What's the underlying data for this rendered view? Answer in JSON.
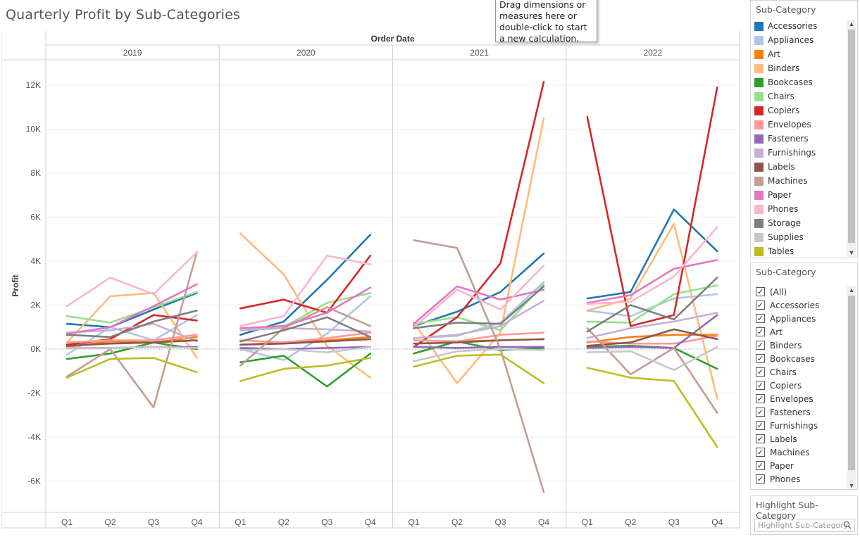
{
  "title": "Quarterly Profit by Sub-Categories",
  "tooltip_text": "Drag dimensions or measures here or double-click to start a new calculation.",
  "legend": {
    "title": "Sub-Category",
    "items": [
      {
        "label": "Accessories",
        "color": "#1f77b4"
      },
      {
        "label": "Appliances",
        "color": "#aec7e8"
      },
      {
        "label": "Art",
        "color": "#ff7f0e"
      },
      {
        "label": "Binders",
        "color": "#ffbb78"
      },
      {
        "label": "Bookcases",
        "color": "#2ca02c"
      },
      {
        "label": "Chairs",
        "color": "#98df8a"
      },
      {
        "label": "Copiers",
        "color": "#d62728"
      },
      {
        "label": "Envelopes",
        "color": "#ff9896"
      },
      {
        "label": "Fasteners",
        "color": "#9467bd"
      },
      {
        "label": "Furnishings",
        "color": "#c5b0d5"
      },
      {
        "label": "Labels",
        "color": "#8c564b"
      },
      {
        "label": "Machines",
        "color": "#c49c94"
      },
      {
        "label": "Paper",
        "color": "#e377c2"
      },
      {
        "label": "Phones",
        "color": "#f7b6d2"
      },
      {
        "label": "Storage",
        "color": "#7f7f7f"
      },
      {
        "label": "Supplies",
        "color": "#c7c7c7"
      },
      {
        "label": "Tables",
        "color": "#bcbd22"
      }
    ]
  },
  "filter": {
    "title": "Sub-Category",
    "items": [
      "(All)",
      "Accessories",
      "Appliances",
      "Art",
      "Binders",
      "Bookcases",
      "Chairs",
      "Copiers",
      "Envelopes",
      "Fasteners",
      "Furnishings",
      "Labels",
      "Machines",
      "Paper",
      "Phones"
    ],
    "check_mark": "✓"
  },
  "highlight": {
    "title": "Highlight Sub-Category",
    "placeholder": "Highlight Sub-Category"
  },
  "chart_data": {
    "type": "line",
    "column_header": "Order Date",
    "ylabel": "Profit",
    "years": [
      "2019",
      "2020",
      "2021",
      "2022"
    ],
    "quarters": [
      "Q1",
      "Q2",
      "Q3",
      "Q4"
    ],
    "ylim": [
      -7500,
      12500
    ],
    "yticks": [
      {
        "value": 12000,
        "label": "12K"
      },
      {
        "value": 10000,
        "label": "10K"
      },
      {
        "value": 8000,
        "label": "8K"
      },
      {
        "value": 6000,
        "label": "6K"
      },
      {
        "value": 4000,
        "label": "4K"
      },
      {
        "value": 2000,
        "label": "2K"
      },
      {
        "value": 0,
        "label": "0K"
      },
      {
        "value": -2000,
        "label": "-2K"
      },
      {
        "value": -4000,
        "label": "-4K"
      },
      {
        "value": -6000,
        "label": "-6K"
      }
    ],
    "series": [
      {
        "name": "Accessories",
        "color": "#1f77b4",
        "values": [
          [
            1150,
            1000,
            1800,
            2550
          ],
          [
            650,
            1250,
            3150,
            5200
          ],
          [
            1050,
            1700,
            2600,
            4350
          ],
          [
            2300,
            2600,
            6350,
            4450
          ]
        ]
      },
      {
        "name": "Appliances",
        "color": "#aec7e8",
        "values": [
          [
            -250,
            1000,
            400,
            1550
          ],
          [
            0,
            -500,
            700,
            2400
          ],
          [
            500,
            600,
            1200,
            3050
          ],
          [
            1750,
            1500,
            2300,
            2500
          ]
        ]
      },
      {
        "name": "Art",
        "color": "#ff7f0e",
        "values": [
          [
            100,
            350,
            300,
            550
          ],
          [
            200,
            300,
            400,
            550
          ],
          [
            400,
            350,
            400,
            450
          ],
          [
            300,
            550,
            650,
            650
          ]
        ]
      },
      {
        "name": "Binders",
        "color": "#ffbb78",
        "values": [
          [
            300,
            2400,
            2550,
            -400
          ],
          [
            5250,
            3400,
            150,
            -1300
          ],
          [
            1200,
            -1550,
            750,
            10500
          ],
          [
            1750,
            2300,
            5700,
            -2250
          ]
        ]
      },
      {
        "name": "Bookcases",
        "color": "#2ca02c",
        "values": [
          [
            -450,
            -200,
            300,
            0
          ],
          [
            -600,
            -300,
            -1700,
            -200
          ],
          [
            -200,
            350,
            -50,
            50
          ],
          [
            100,
            150,
            50,
            -900
          ]
        ]
      },
      {
        "name": "Chairs",
        "color": "#98df8a",
        "values": [
          [
            1500,
            1200,
            1900,
            2600
          ],
          [
            850,
            1000,
            2100,
            2550
          ],
          [
            1150,
            1450,
            850,
            2950
          ],
          [
            1250,
            1200,
            2500,
            2900
          ]
        ]
      },
      {
        "name": "Copiers",
        "color": "#d62728",
        "values": [
          [
            200,
            450,
            1550,
            1300
          ],
          [
            1850,
            2250,
            1650,
            4250
          ],
          [
            100,
            1450,
            3900,
            12150
          ],
          [
            10550,
            1050,
            1550,
            11900
          ]
        ]
      },
      {
        "name": "Envelopes",
        "color": "#ff9896",
        "values": [
          [
            300,
            400,
            400,
            650
          ],
          [
            400,
            300,
            500,
            750
          ],
          [
            400,
            350,
            650,
            750
          ],
          [
            350,
            250,
            250,
            600
          ]
        ]
      },
      {
        "name": "Fasteners",
        "color": "#9467bd",
        "values": [
          [
            50,
            50,
            100,
            100
          ],
          [
            50,
            0,
            50,
            100
          ],
          [
            100,
            50,
            100,
            100
          ],
          [
            50,
            100,
            50,
            1550
          ]
        ]
      },
      {
        "name": "Furnishings",
        "color": "#c5b0d5",
        "values": [
          [
            750,
            850,
            1150,
            350
          ],
          [
            850,
            950,
            900,
            800
          ],
          [
            500,
            650,
            1050,
            2200
          ],
          [
            500,
            950,
            1250,
            1650
          ]
        ]
      },
      {
        "name": "Labels",
        "color": "#8c564b",
        "values": [
          [
            150,
            250,
            300,
            400
          ],
          [
            200,
            250,
            350,
            450
          ],
          [
            250,
            300,
            400,
            450
          ],
          [
            150,
            300,
            900,
            450
          ]
        ]
      },
      {
        "name": "Machines",
        "color": "#c49c94",
        "values": [
          [
            -1250,
            0,
            -2650,
            4400
          ],
          [
            -750,
            950,
            1900,
            1050
          ],
          [
            4950,
            4600,
            0,
            -6500
          ],
          [
            950,
            -1150,
            50,
            -2900
          ]
        ]
      },
      {
        "name": "Paper",
        "color": "#e377c2",
        "values": [
          [
            700,
            1000,
            1950,
            2950
          ],
          [
            950,
            1050,
            1650,
            2800
          ],
          [
            1150,
            2850,
            2250,
            2700
          ],
          [
            2100,
            2450,
            3650,
            4050
          ]
        ]
      },
      {
        "name": "Phones",
        "color": "#f7b6d2",
        "values": [
          [
            1950,
            3250,
            2500,
            4400
          ],
          [
            1050,
            1500,
            4250,
            3850
          ],
          [
            1000,
            2700,
            1800,
            3800
          ],
          [
            2050,
            2150,
            3300,
            5550
          ]
        ]
      },
      {
        "name": "Storage",
        "color": "#7f7f7f",
        "values": [
          [
            650,
            550,
            1250,
            1750
          ],
          [
            350,
            850,
            1450,
            550
          ],
          [
            950,
            1200,
            1150,
            2850
          ],
          [
            800,
            2000,
            1350,
            3250
          ]
        ]
      },
      {
        "name": "Supplies",
        "color": "#c7c7c7",
        "values": [
          [
            50,
            50,
            100,
            50
          ],
          [
            -50,
            0,
            -150,
            100
          ],
          [
            -550,
            -100,
            0,
            -50
          ],
          [
            -150,
            -100,
            -950,
            100
          ]
        ]
      },
      {
        "name": "Tables",
        "color": "#bcbd22",
        "values": [
          [
            -1300,
            -450,
            -400,
            -1050
          ],
          [
            -1450,
            -900,
            -750,
            -400
          ],
          [
            -800,
            -300,
            -250,
            -1550
          ],
          [
            -850,
            -1300,
            -1450,
            -4450
          ]
        ]
      }
    ]
  }
}
